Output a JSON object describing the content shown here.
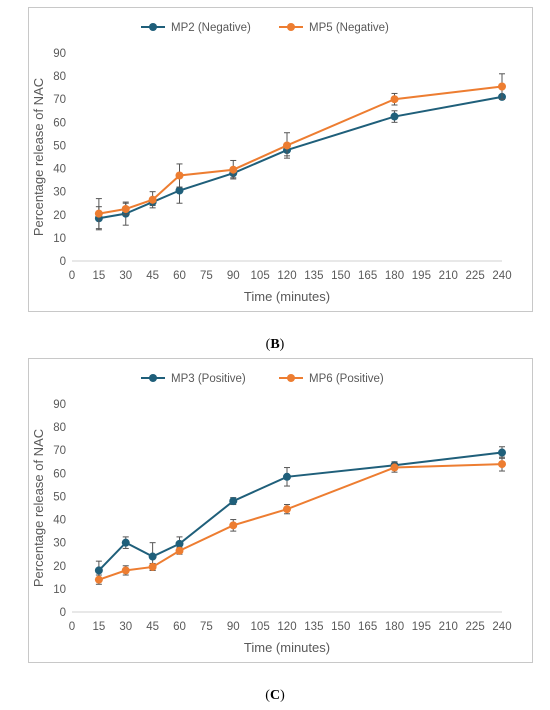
{
  "chart_data": [
    {
      "panel_label": "B",
      "type": "line",
      "xlabel": "Time (minutes)",
      "ylabel": "Percentage release of NAC",
      "xlim": [
        0,
        240
      ],
      "ylim": [
        0,
        90
      ],
      "x_ticks": [
        0,
        15,
        30,
        45,
        60,
        75,
        90,
        105,
        120,
        135,
        150,
        165,
        180,
        195,
        210,
        225,
        240
      ],
      "y_ticks": [
        0,
        10,
        20,
        30,
        40,
        50,
        60,
        70,
        80,
        90
      ],
      "grid": false,
      "legend_position": "top",
      "x": [
        15,
        30,
        45,
        60,
        90,
        120,
        180,
        240
      ],
      "series": [
        {
          "name": "MP2 (Negative)",
          "color": "#1f5f7a",
          "values": [
            18.5,
            20.5,
            25.5,
            30.5,
            38,
            48,
            62.5,
            71
          ],
          "errors": [
            5,
            5,
            1.5,
            5.5,
            2,
            2.5,
            2.5,
            1
          ]
        },
        {
          "name": "MP5 (Negative)",
          "color": "#ed7d31",
          "values": [
            20.5,
            22.5,
            26.5,
            37,
            39.5,
            50,
            70,
            75.5
          ],
          "errors": [
            6.5,
            2.5,
            3.5,
            5,
            4,
            5.5,
            2.5,
            5.5
          ]
        }
      ]
    },
    {
      "panel_label": "C",
      "type": "line",
      "xlabel": "Time (minutes)",
      "ylabel": "Percentage release of NAC",
      "xlim": [
        0,
        240
      ],
      "ylim": [
        0,
        90
      ],
      "x_ticks": [
        0,
        15,
        30,
        45,
        60,
        75,
        90,
        105,
        120,
        135,
        150,
        165,
        180,
        195,
        210,
        225,
        240
      ],
      "y_ticks": [
        0,
        10,
        20,
        30,
        40,
        50,
        60,
        70,
        80,
        90
      ],
      "grid": false,
      "legend_position": "top",
      "x": [
        15,
        30,
        45,
        60,
        90,
        120,
        180,
        240
      ],
      "series": [
        {
          "name": "MP3 (Positive)",
          "color": "#1f5f7a",
          "values": [
            18,
            30,
            24,
            29.5,
            48,
            58.5,
            63.5,
            69
          ],
          "errors": [
            4,
            2.5,
            6,
            3,
            1.5,
            4,
            1.5,
            2.5
          ]
        },
        {
          "name": "MP6 (Positive)",
          "color": "#ed7d31",
          "values": [
            14,
            18,
            19.5,
            26.5,
            37.5,
            44.5,
            62.5,
            64
          ],
          "errors": [
            2,
            2,
            1.5,
            1.5,
            2.5,
            2,
            2,
            3
          ]
        }
      ]
    }
  ]
}
